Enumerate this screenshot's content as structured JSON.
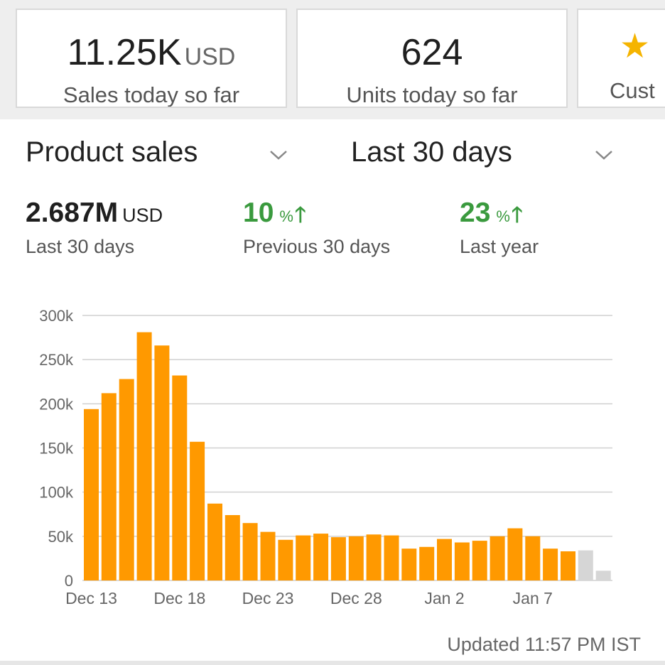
{
  "summary_cards": [
    {
      "value": "11.25K",
      "unit": "USD",
      "label": "Sales today so far"
    },
    {
      "value": "624",
      "unit": "",
      "label": "Units today so far"
    },
    {
      "icon": "star-icon",
      "label": "Cust"
    }
  ],
  "selectors": {
    "metric": "Product sales",
    "range": "Last 30 days"
  },
  "metrics": [
    {
      "value": "2.687M",
      "unit": "USD",
      "label": "Last 30 days"
    },
    {
      "value": "10",
      "unit": "%",
      "trend": "up",
      "label": "Previous 30 days"
    },
    {
      "value": "23",
      "unit": "%",
      "trend": "up",
      "label": "Last year"
    }
  ],
  "updated": "Updated 11:57 PM IST",
  "colors": {
    "bar": "#ff9900",
    "bar_pending": "#d6d6d6",
    "positive": "#3a9a3e",
    "star": "#f5b400"
  },
  "chart_data": {
    "type": "bar",
    "x_tick_labels": [
      "Dec 13",
      "Dec 18",
      "Dec 23",
      "Dec 28",
      "Jan 2",
      "Jan 7"
    ],
    "y_tick_labels": [
      "0",
      "50k",
      "100k",
      "150k",
      "200k",
      "250k",
      "300k"
    ],
    "ylim": [
      0,
      300000
    ],
    "grid": true,
    "categories": [
      "Dec 13",
      "Dec 14",
      "Dec 15",
      "Dec 16",
      "Dec 17",
      "Dec 18",
      "Dec 19",
      "Dec 20",
      "Dec 21",
      "Dec 22",
      "Dec 23",
      "Dec 24",
      "Dec 25",
      "Dec 26",
      "Dec 27",
      "Dec 28",
      "Dec 29",
      "Dec 30",
      "Dec 31",
      "Jan 1",
      "Jan 2",
      "Jan 3",
      "Jan 4",
      "Jan 5",
      "Jan 6",
      "Jan 7",
      "Jan 8",
      "Jan 9",
      "Jan 10",
      "Jan 11"
    ],
    "values": [
      194000,
      212000,
      228000,
      281000,
      266000,
      232000,
      157000,
      87000,
      74000,
      65000,
      55000,
      46000,
      51000,
      53000,
      49000,
      50000,
      52000,
      51000,
      36000,
      38000,
      47000,
      43000,
      45000,
      50000,
      59000,
      50000,
      36000,
      33000,
      34000,
      11000
    ],
    "pending": [
      false,
      false,
      false,
      false,
      false,
      false,
      false,
      false,
      false,
      false,
      false,
      false,
      false,
      false,
      false,
      false,
      false,
      false,
      false,
      false,
      false,
      false,
      false,
      false,
      false,
      false,
      false,
      false,
      true,
      true
    ]
  }
}
